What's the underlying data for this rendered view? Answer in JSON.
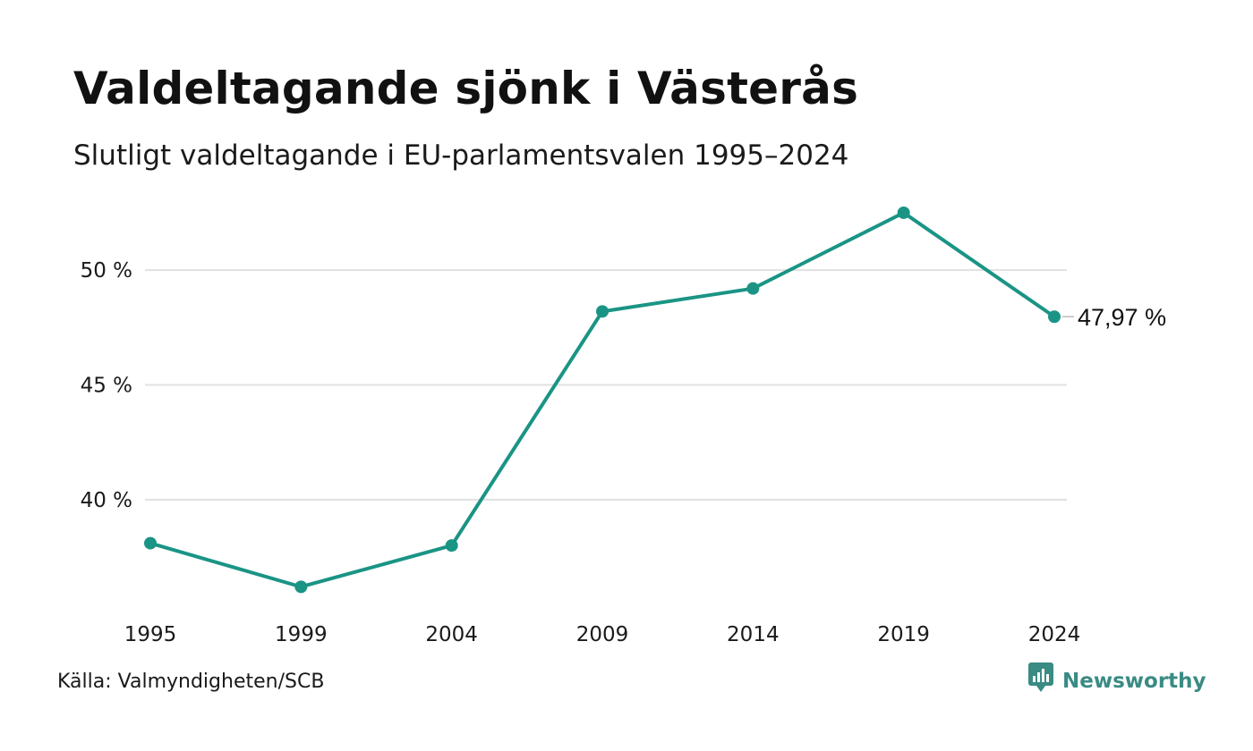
{
  "title": "Valdeltagande sjönk i Västerås",
  "subtitle": "Slutligt valdeltagande i EU-parlamentsvalen 1995–2024",
  "source": "Källa: Valmyndigheten/SCB",
  "brand": {
    "name": "Newsworthy",
    "icon": "newsworthy-logo-icon"
  },
  "colors": {
    "line": "#1a9485",
    "grid": "#e1e1e1",
    "brand": "#3a8b84"
  },
  "chart_data": {
    "type": "line",
    "title": "Valdeltagande sjönk i Västerås",
    "subtitle": "Slutligt valdeltagande i EU-parlamentsvalen 1995–2024",
    "xlabel": "",
    "ylabel": "",
    "categories": [
      "1995",
      "1999",
      "2004",
      "2009",
      "2014",
      "2019",
      "2024"
    ],
    "series": [
      {
        "values": [
          38.1,
          36.2,
          38.0,
          48.2,
          49.2,
          52.5,
          47.97
        ]
      }
    ],
    "yticks": [
      40,
      45,
      50
    ],
    "ytick_labels": [
      "40 %",
      "45 %",
      "50 %"
    ],
    "ylim": [
      34.5,
      53.2
    ],
    "grid": true,
    "end_label": "47,97 %"
  }
}
